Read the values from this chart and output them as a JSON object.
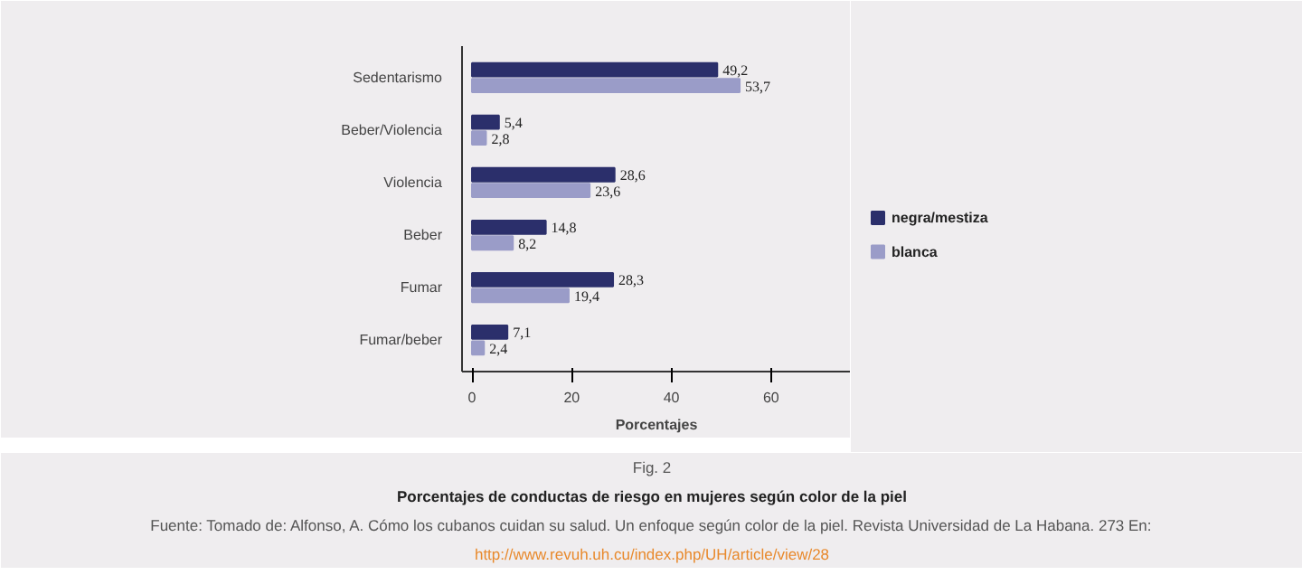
{
  "chart_data": {
    "type": "bar",
    "orientation": "horizontal",
    "title": "Porcentajes de conductas de riesgo en mujeres según color de la piel",
    "xlabel": "Porcentajes",
    "annotations": [
      "Fig. 2",
      "Fuente: Tomado de: Alfonso, A. Cómo los cubanos cuidan su salud. Un enfoque según color de la piel. Revista Universidad de La Habana. 273 En:",
      "http://www.revuh.uh.cu/index.php/UH/article/view/28"
    ],
    "categories": [
      "Sedentarismo",
      "Beber/Violencia",
      "Violencia",
      "Beber",
      "Fumar",
      "Fumar/beber"
    ],
    "series": [
      {
        "name": "negra/mestiza",
        "color": "#2b2f6b",
        "values": [
          49.2,
          5.4,
          28.6,
          14.8,
          28.3,
          7.1
        ],
        "value_labels": [
          "49,2",
          "5,4",
          "28,6",
          "14,8",
          "28,3",
          "7,1"
        ]
      },
      {
        "name": "blanca",
        "color": "#9a9cc8",
        "values": [
          53.7,
          2.8,
          23.6,
          8.2,
          19.4,
          2.4
        ],
        "value_labels": [
          "53,7",
          "2,8",
          "23,6",
          "8,2",
          "19,4",
          "2,4"
        ]
      }
    ],
    "xlim": [
      -2,
      76
    ],
    "xticks": [
      0,
      20,
      40,
      60
    ],
    "legend": "right"
  }
}
